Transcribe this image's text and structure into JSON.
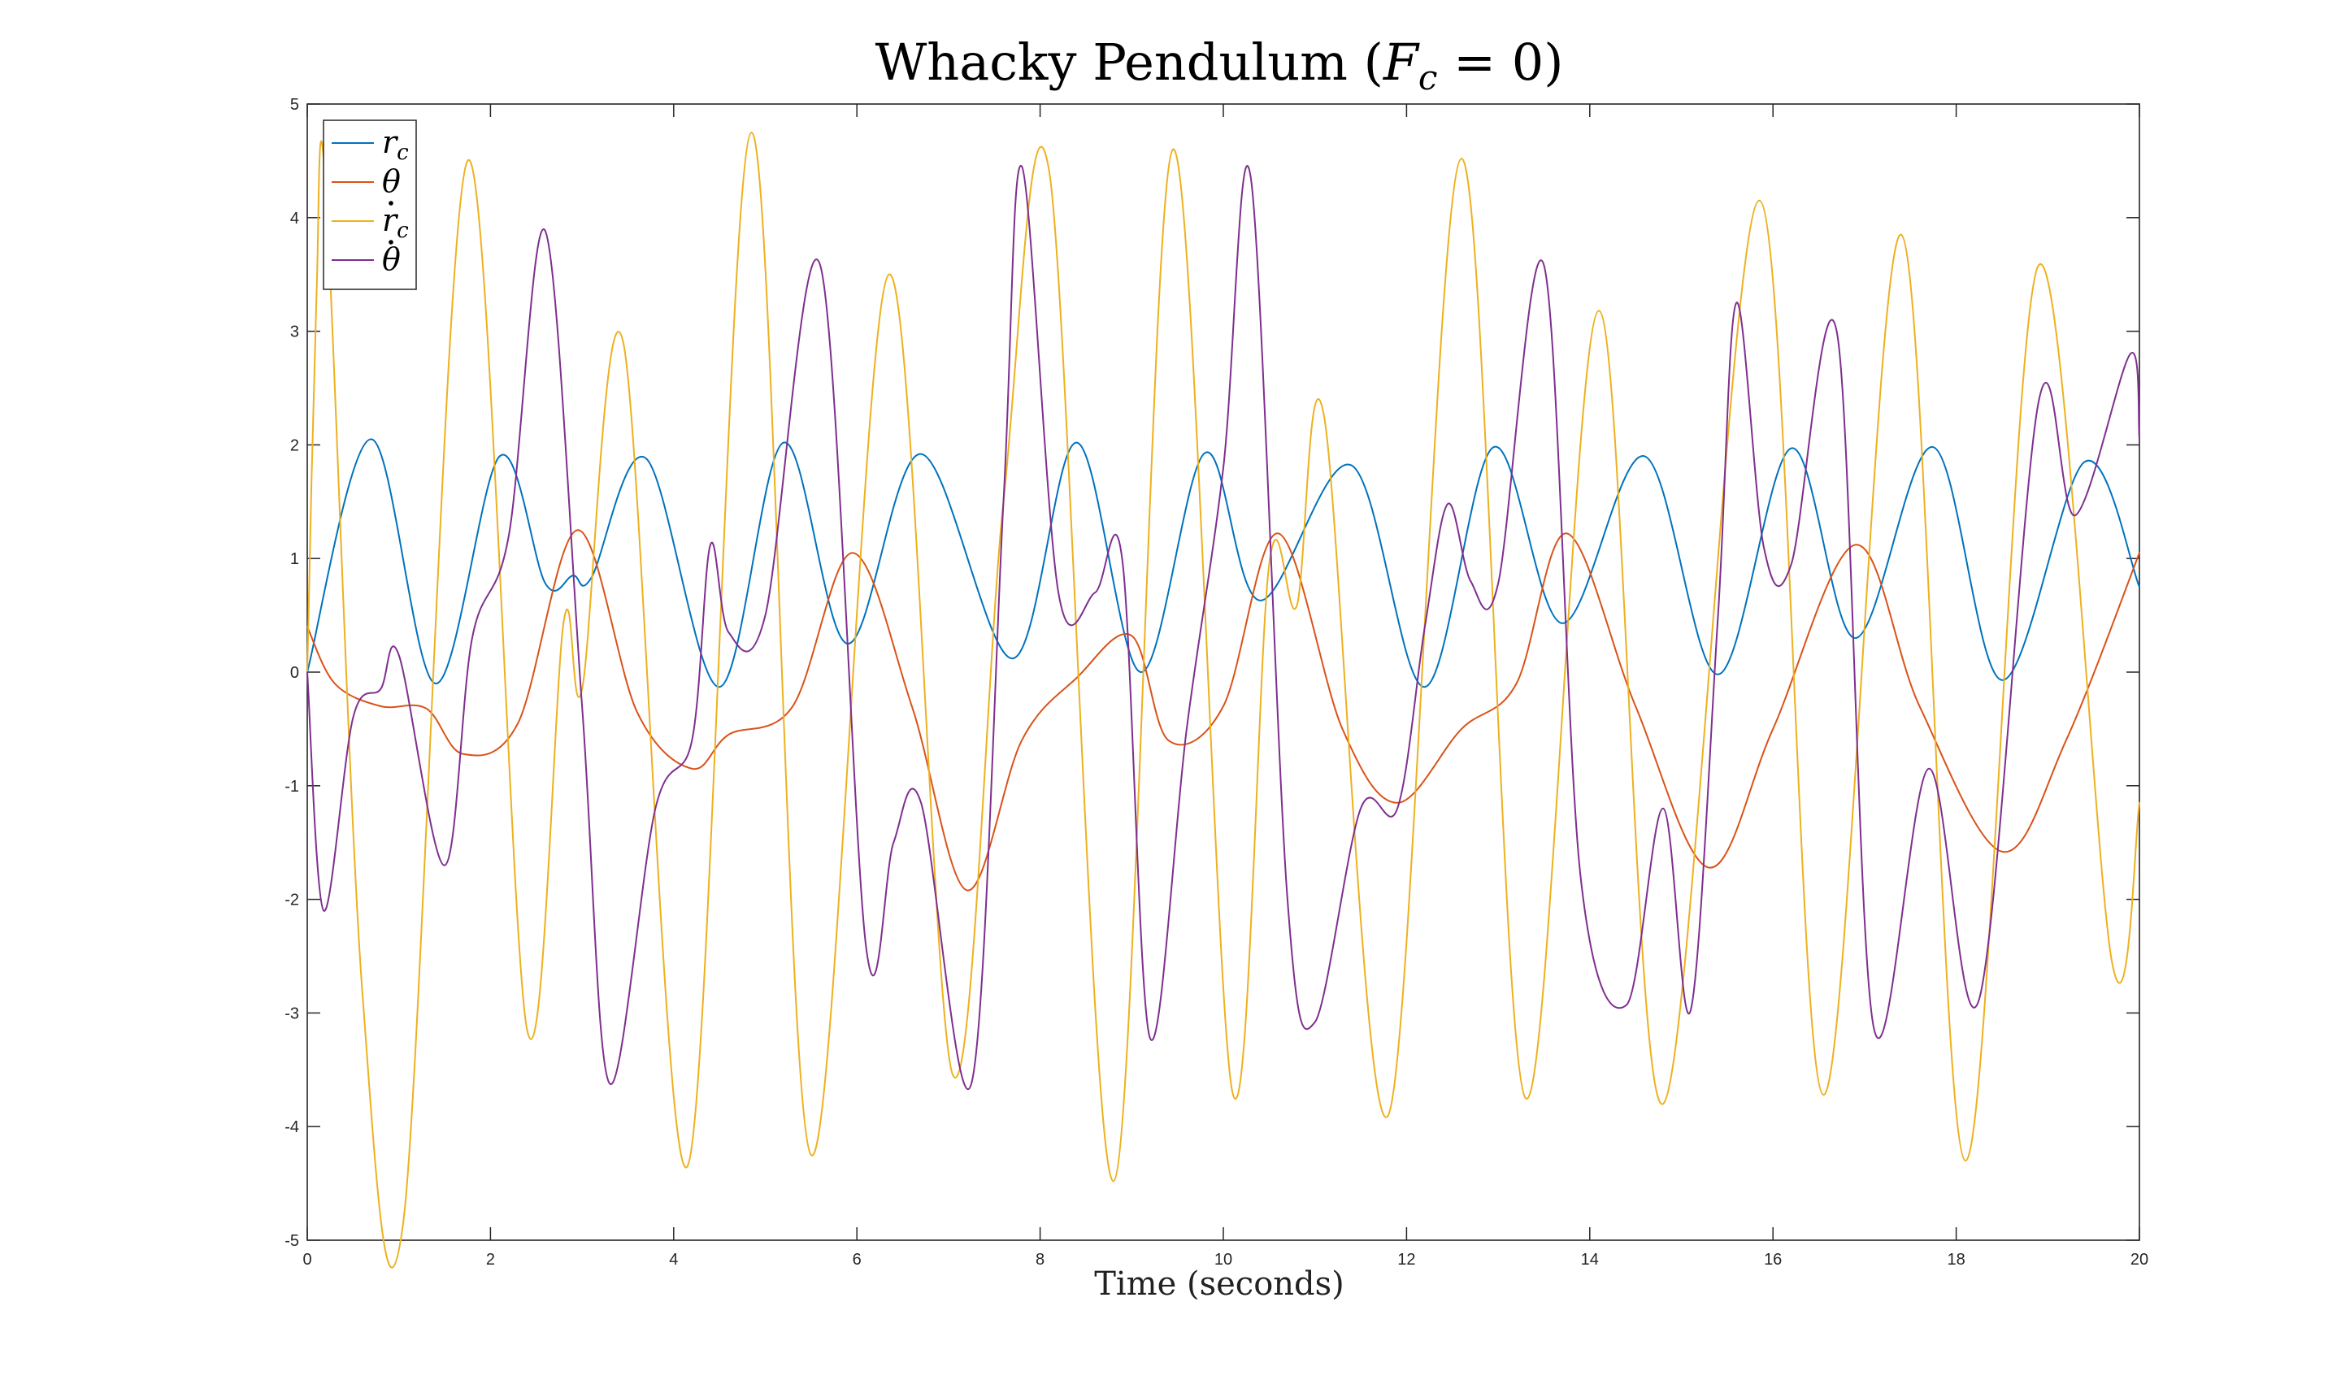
{
  "chart_data": {
    "type": "line",
    "title": {
      "pre": "Whacky Pendulum (",
      "var": "F",
      "sub": "c",
      "post": " = 0)"
    },
    "xlabel": "Time (seconds)",
    "ylabel": "",
    "xlim": [
      0,
      20
    ],
    "ylim": [
      -5,
      5
    ],
    "xticks": [
      0,
      2,
      4,
      6,
      8,
      10,
      12,
      14,
      16,
      18,
      20
    ],
    "yticks": [
      -5,
      -4,
      -3,
      -2,
      -1,
      0,
      1,
      2,
      3,
      4,
      5
    ],
    "grid": false,
    "legend_position": "top-left",
    "series": [
      {
        "name": "r_c",
        "legend": {
          "var": "r",
          "sub": "c"
        },
        "color": "#0072BD",
        "points": [
          [
            0,
            0
          ],
          [
            0.7,
            2.05
          ],
          [
            1.4,
            -0.1
          ],
          [
            2.1,
            1.9
          ],
          [
            2.6,
            0.78
          ],
          [
            2.9,
            0.85
          ],
          [
            3.1,
            0.83
          ],
          [
            3.7,
            1.88
          ],
          [
            4.5,
            -0.13
          ],
          [
            5.2,
            2.02
          ],
          [
            5.9,
            0.25
          ],
          [
            6.7,
            1.92
          ],
          [
            7.7,
            0.12
          ],
          [
            8.4,
            2.02
          ],
          [
            9.1,
            0.0
          ],
          [
            9.8,
            1.93
          ],
          [
            10.4,
            0.63
          ],
          [
            11.4,
            1.82
          ],
          [
            12.2,
            -0.13
          ],
          [
            12.95,
            1.98
          ],
          [
            13.7,
            0.43
          ],
          [
            14.6,
            1.9
          ],
          [
            15.4,
            -0.02
          ],
          [
            16.2,
            1.97
          ],
          [
            16.9,
            0.3
          ],
          [
            17.75,
            1.98
          ],
          [
            18.5,
            -0.07
          ],
          [
            19.4,
            1.85
          ],
          [
            20,
            0.75
          ]
        ]
      },
      {
        "name": "theta",
        "legend": {
          "var": "θ",
          "sub": ""
        },
        "color": "#D95319",
        "points": [
          [
            0,
            0.4
          ],
          [
            0.3,
            -0.1
          ],
          [
            0.8,
            -0.3
          ],
          [
            1.3,
            -0.32
          ],
          [
            1.7,
            -0.72
          ],
          [
            2.3,
            -0.45
          ],
          [
            2.95,
            1.25
          ],
          [
            3.6,
            -0.35
          ],
          [
            4.2,
            -0.85
          ],
          [
            4.6,
            -0.55
          ],
          [
            5.3,
            -0.3
          ],
          [
            5.95,
            1.05
          ],
          [
            6.6,
            -0.3
          ],
          [
            7.2,
            -1.92
          ],
          [
            7.8,
            -0.6
          ],
          [
            8.4,
            -0.05
          ],
          [
            9.0,
            0.32
          ],
          [
            9.4,
            -0.6
          ],
          [
            10.0,
            -0.3
          ],
          [
            10.6,
            1.22
          ],
          [
            11.3,
            -0.5
          ],
          [
            11.9,
            -1.15
          ],
          [
            12.6,
            -0.5
          ],
          [
            13.2,
            -0.1
          ],
          [
            13.75,
            1.22
          ],
          [
            14.5,
            -0.3
          ],
          [
            15.3,
            -1.72
          ],
          [
            16.0,
            -0.5
          ],
          [
            16.9,
            1.12
          ],
          [
            17.6,
            -0.3
          ],
          [
            18.5,
            -1.58
          ],
          [
            19.2,
            -0.6
          ],
          [
            20,
            1.05
          ]
        ]
      },
      {
        "name": "r_c dot",
        "legend": {
          "var": "r",
          "sub": "c",
          "dot": true
        },
        "color": "#EDB120",
        "points": [
          [
            0,
            0.0
          ],
          [
            0.1,
            3.3
          ],
          [
            0.2,
            4.3
          ],
          [
            0.6,
            -2.8
          ],
          [
            1.05,
            -4.83
          ],
          [
            1.75,
            4.5
          ],
          [
            2.4,
            -3.15
          ],
          [
            2.8,
            0.45
          ],
          [
            3.0,
            -0.15
          ],
          [
            3.45,
            2.9
          ],
          [
            4.15,
            -4.35
          ],
          [
            4.85,
            4.75
          ],
          [
            5.5,
            -4.25
          ],
          [
            6.35,
            3.5
          ],
          [
            7.05,
            -3.55
          ],
          [
            7.6,
            1.5
          ],
          [
            8.1,
            4.4
          ],
          [
            8.8,
            -4.48
          ],
          [
            9.45,
            4.6
          ],
          [
            10.1,
            -3.7
          ],
          [
            10.5,
            0.95
          ],
          [
            10.8,
            0.58
          ],
          [
            11.1,
            2.25
          ],
          [
            11.8,
            -3.9
          ],
          [
            12.6,
            4.52
          ],
          [
            13.3,
            -3.75
          ],
          [
            14.1,
            3.18
          ],
          [
            14.8,
            -3.8
          ],
          [
            15.85,
            4.15
          ],
          [
            16.55,
            -3.72
          ],
          [
            17.4,
            3.85
          ],
          [
            18.1,
            -4.3
          ],
          [
            18.9,
            3.58
          ],
          [
            19.7,
            -2.55
          ],
          [
            20,
            -1.15
          ]
        ]
      },
      {
        "name": "theta dot",
        "legend": {
          "var": "θ",
          "sub": "",
          "dot": true
        },
        "color": "#7E2F8E",
        "points": [
          [
            0,
            0.0
          ],
          [
            0.18,
            -2.1
          ],
          [
            0.5,
            -0.4
          ],
          [
            0.8,
            -0.15
          ],
          [
            1.0,
            0.15
          ],
          [
            1.5,
            -1.7
          ],
          [
            1.8,
            0.3
          ],
          [
            2.2,
            1.2
          ],
          [
            2.6,
            3.88
          ],
          [
            3.0,
            -0.3
          ],
          [
            3.3,
            -3.62
          ],
          [
            3.8,
            -1.2
          ],
          [
            4.2,
            -0.6
          ],
          [
            4.4,
            1.12
          ],
          [
            4.6,
            0.35
          ],
          [
            5.0,
            0.5
          ],
          [
            5.6,
            3.58
          ],
          [
            6.1,
            -2.42
          ],
          [
            6.4,
            -1.5
          ],
          [
            6.7,
            -1.15
          ],
          [
            7.25,
            -3.62
          ],
          [
            7.6,
            1.5
          ],
          [
            7.8,
            4.45
          ],
          [
            8.2,
            0.7
          ],
          [
            8.6,
            0.7
          ],
          [
            8.9,
            0.97
          ],
          [
            9.2,
            -3.22
          ],
          [
            9.6,
            -0.5
          ],
          [
            10.0,
            1.8
          ],
          [
            10.3,
            4.35
          ],
          [
            10.7,
            -2.0
          ],
          [
            11.0,
            -3.08
          ],
          [
            11.5,
            -1.2
          ],
          [
            11.9,
            -1.2
          ],
          [
            12.2,
            0.4
          ],
          [
            12.45,
            1.48
          ],
          [
            12.7,
            0.8
          ],
          [
            13.0,
            0.78
          ],
          [
            13.5,
            3.58
          ],
          [
            13.9,
            -1.8
          ],
          [
            14.4,
            -2.93
          ],
          [
            14.8,
            -1.2
          ],
          [
            15.1,
            -2.98
          ],
          [
            15.4,
            0.5
          ],
          [
            15.6,
            3.25
          ],
          [
            15.9,
            1.1
          ],
          [
            16.2,
            0.95
          ],
          [
            16.7,
            2.98
          ],
          [
            17.1,
            -3.13
          ],
          [
            17.7,
            -0.85
          ],
          [
            18.25,
            -2.88
          ],
          [
            18.9,
            2.38
          ],
          [
            19.3,
            1.38
          ],
          [
            19.9,
            2.8
          ],
          [
            20,
            2.05
          ]
        ]
      }
    ]
  }
}
